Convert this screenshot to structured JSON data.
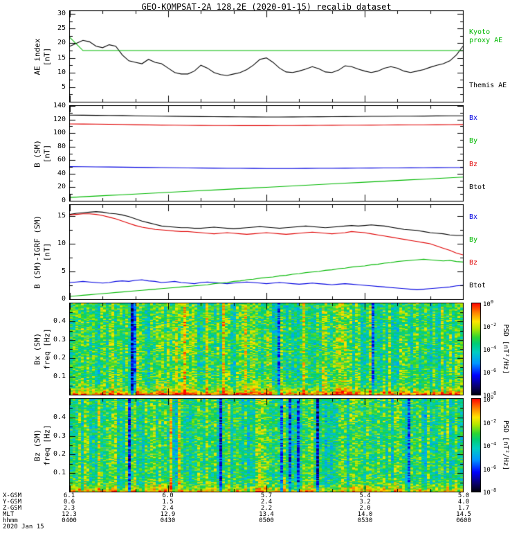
{
  "title": "GEO-KOMPSAT-2A 128.2E (2020-01-15) recalib dataset",
  "date_label": "2020 Jan 15",
  "colors": {
    "black": "#000000",
    "green": "#00b800",
    "red": "#e00000",
    "blue": "#0000e0",
    "background": "#ffffff"
  },
  "time_axis": {
    "tick_labels": [
      "0400",
      "0430",
      "0500",
      "0530",
      "0600"
    ],
    "range_minutes": [
      240,
      360
    ],
    "major_step_minutes": 30,
    "minor_step_minutes": 10
  },
  "bottom_rows": [
    {
      "label": "X-GSM",
      "values": [
        "6.1",
        "6.0",
        "5.7",
        "5.4",
        "5.0"
      ]
    },
    {
      "label": "Y-GSM",
      "values": [
        "0.6",
        "1.5",
        "2.4",
        "3.2",
        "4.0"
      ]
    },
    {
      "label": "Z-GSM",
      "values": [
        "2.3",
        "2.4",
        "2.2",
        "2.0",
        "1.7"
      ]
    },
    {
      "label": "MLT",
      "values": [
        "12.3",
        "12.9",
        "13.4",
        "14.0",
        "14.5"
      ]
    },
    {
      "label": "hhmm",
      "values": [
        "0400",
        "0430",
        "0500",
        "0530",
        "0600"
      ]
    }
  ],
  "chart_data": [
    {
      "type": "line",
      "panel": "ae-index",
      "ylabel_lines": [
        "AE index",
        "[nT]"
      ],
      "ylim": [
        0,
        31
      ],
      "yticks": [
        5,
        10,
        15,
        20,
        25,
        30
      ],
      "x_range_minutes": [
        240,
        360
      ],
      "series": [
        {
          "name": "Themis AE",
          "color": "#000000",
          "values": [
            19,
            20,
            21,
            20.5,
            19,
            18.5,
            19.5,
            19,
            16,
            14,
            13.5,
            13,
            14.5,
            13.5,
            13,
            11.5,
            10,
            9.5,
            9.5,
            10.5,
            12.5,
            11.5,
            10,
            9.3,
            9,
            9.5,
            10,
            11,
            12.5,
            14.5,
            15,
            13.5,
            11.5,
            10.2,
            10,
            10.5,
            11.2,
            12,
            11.3,
            10.2,
            10,
            10.8,
            12.3,
            12,
            11.2,
            10.5,
            10,
            10.5,
            11.5,
            12,
            11.5,
            10.5,
            10,
            10.5,
            11,
            11.8,
            12.5,
            13,
            14,
            16,
            19
          ]
        },
        {
          "name": "Kyoto proxy AE",
          "color": "#00b800",
          "values": [
            22,
            17.5,
            17.5,
            17.5,
            17.5,
            17.5,
            17.5,
            17.5,
            17.5,
            17.5,
            17.5,
            17.5,
            17.5,
            17.5,
            17.5,
            17.5,
            17.5,
            17.5,
            17.5,
            17.5,
            17.5,
            17.5,
            17.5,
            17.5,
            17.5,
            17.5,
            17.5,
            17.5,
            17.5,
            17.5,
            17.5
          ]
        }
      ],
      "legend": [
        {
          "lines": [
            "Kyoto",
            "proxy AE"
          ],
          "color": "#00b800",
          "y_frac": 0.2
        },
        {
          "lines": [
            "Themis AE"
          ],
          "color": "#000000",
          "y_frac": 0.78
        }
      ]
    },
    {
      "type": "line",
      "panel": "b-sm",
      "ylabel_lines": [
        "B (SM)",
        "[nT]"
      ],
      "ylim": [
        0,
        140
      ],
      "yticks": [
        0,
        20,
        40,
        60,
        80,
        100,
        120,
        140
      ],
      "x_range_minutes": [
        240,
        360
      ],
      "series": [
        {
          "name": "Btot",
          "color": "#000000",
          "values": [
            126.5,
            126.3,
            126.1,
            126,
            125.8,
            125.5,
            125.2,
            125,
            124.8,
            124.5,
            124.3,
            124.2,
            124,
            123.9,
            123.8,
            123.7,
            123.7,
            123.8,
            123.9,
            124,
            124.1,
            124.3,
            124.4,
            124.6,
            124.7,
            124.9,
            125,
            125.1,
            125.3,
            125.4,
            125.5
          ]
        },
        {
          "name": "Bz",
          "color": "#e00000",
          "values": [
            113.5,
            113.3,
            113.1,
            112.9,
            112.6,
            112.3,
            112,
            111.8,
            111.6,
            111.4,
            111.3,
            111.2,
            111.1,
            111,
            111,
            111,
            111.1,
            111.2,
            111.3,
            111.4,
            111.5,
            111.6,
            111.7,
            111.8,
            111.9,
            112,
            112.1,
            112.2,
            112.3,
            112.4,
            112.5
          ]
        },
        {
          "name": "Bx",
          "color": "#0000e0",
          "values": [
            50.5,
            50.3,
            50.1,
            49.9,
            49.7,
            49.4,
            49.2,
            49,
            48.8,
            48.6,
            48.4,
            48.2,
            48.1,
            48,
            47.9,
            47.8,
            47.8,
            47.8,
            47.9,
            48,
            48.1,
            48.2,
            48.3,
            48.4,
            48.5,
            48.6,
            48.7,
            48.8,
            48.9,
            49,
            49.1
          ]
        },
        {
          "name": "By",
          "color": "#00b800",
          "values": [
            5,
            6,
            7,
            8,
            9,
            10,
            11,
            12,
            13,
            14,
            15,
            16,
            17,
            18,
            19,
            20,
            21,
            22,
            23,
            24,
            25,
            26,
            27,
            28,
            29,
            30,
            31,
            32,
            33,
            34,
            35
          ]
        }
      ],
      "legend": [
        {
          "lines": [
            "Bx"
          ],
          "color": "#0000e0",
          "y_frac": 0.1
        },
        {
          "lines": [
            "By"
          ],
          "color": "#00b800",
          "y_frac": 0.34
        },
        {
          "lines": [
            "Bz"
          ],
          "color": "#e00000",
          "y_frac": 0.58
        },
        {
          "lines": [
            "Btot"
          ],
          "color": "#000000",
          "y_frac": 0.82
        }
      ]
    },
    {
      "type": "line",
      "panel": "b-sm-minus-igrf",
      "ylabel_lines": [
        "B (SM)-IGRF (SM)",
        "[nT]"
      ],
      "ylim": [
        0,
        17
      ],
      "yticks": [
        0,
        5,
        10,
        15
      ],
      "x_range_minutes": [
        240,
        360
      ],
      "series": [
        {
          "name": "Btot",
          "color": "#000000",
          "values": [
            15.3,
            15.5,
            15.6,
            15.7,
            15.8,
            15.7,
            15.5,
            15.4,
            15.2,
            14.9,
            14.5,
            14.1,
            13.8,
            13.5,
            13.2,
            13.1,
            13,
            12.9,
            12.9,
            12.8,
            12.8,
            12.9,
            13,
            12.9,
            12.8,
            12.7,
            12.8,
            12.9,
            13,
            13.1,
            13,
            12.9,
            12.8,
            12.9,
            13,
            13.1,
            13.2,
            13.1,
            13,
            12.9,
            13,
            13.1,
            13.2,
            13.3,
            13.2,
            13.3,
            13.4,
            13.3,
            13.2,
            13,
            12.8,
            12.6,
            12.5,
            12.4,
            12.2,
            12,
            11.9,
            11.8,
            11.6,
            11.5,
            11.5
          ]
        },
        {
          "name": "Bz",
          "color": "#e00000",
          "values": [
            15.2,
            15.3,
            15.4,
            15.4,
            15.3,
            15.1,
            14.8,
            14.5,
            14.1,
            13.7,
            13.3,
            13,
            12.8,
            12.6,
            12.5,
            12.4,
            12.3,
            12.2,
            12.2,
            12.1,
            12,
            11.9,
            11.8,
            11.9,
            12,
            11.9,
            11.8,
            11.7,
            11.8,
            11.9,
            12,
            11.9,
            11.8,
            11.7,
            11.8,
            11.9,
            12,
            12.1,
            12,
            11.9,
            11.8,
            11.9,
            12,
            12.2,
            12.1,
            12,
            11.8,
            11.6,
            11.4,
            11.2,
            11,
            10.8,
            10.6,
            10.4,
            10.2,
            10,
            9.6,
            9.2,
            8.8,
            8.3,
            8
          ]
        },
        {
          "name": "Bx",
          "color": "#0000e0",
          "values": [
            3,
            3.1,
            3.2,
            3.1,
            3,
            2.9,
            3,
            3.2,
            3.3,
            3.2,
            3.4,
            3.5,
            3.3,
            3.2,
            3,
            3.1,
            3.2,
            3,
            2.9,
            2.8,
            3,
            3.1,
            3,
            2.9,
            2.8,
            2.9,
            3,
            3.1,
            3,
            2.9,
            2.8,
            2.9,
            3,
            2.9,
            2.8,
            2.7,
            2.8,
            2.9,
            2.8,
            2.7,
            2.6,
            2.7,
            2.8,
            2.7,
            2.6,
            2.5,
            2.4,
            2.3,
            2.2,
            2.1,
            2,
            1.9,
            1.8,
            1.7,
            1.8,
            1.9,
            2,
            2.1,
            2.2,
            2.4,
            2.5
          ]
        },
        {
          "name": "By",
          "color": "#00b800",
          "values": [
            0.5,
            0.6,
            0.7,
            0.8,
            0.9,
            1,
            1.1,
            1.2,
            1.3,
            1.4,
            1.5,
            1.6,
            1.7,
            1.8,
            1.9,
            2,
            2.1,
            2.2,
            2.3,
            2.4,
            2.5,
            2.6,
            2.8,
            2.9,
            3,
            3.2,
            3.3,
            3.5,
            3.6,
            3.8,
            3.9,
            4,
            4.2,
            4.3,
            4.5,
            4.6,
            4.8,
            4.9,
            5,
            5.2,
            5.3,
            5.5,
            5.6,
            5.8,
            5.9,
            6,
            6.2,
            6.3,
            6.5,
            6.6,
            6.8,
            6.9,
            7,
            7.1,
            7.2,
            7.1,
            7,
            6.9,
            7,
            6.8,
            6.7
          ]
        }
      ],
      "legend": [
        {
          "lines": [
            "Bx"
          ],
          "color": "#0000e0",
          "y_frac": 0.1
        },
        {
          "lines": [
            "By"
          ],
          "color": "#00b800",
          "y_frac": 0.34
        },
        {
          "lines": [
            "Bz"
          ],
          "color": "#e00000",
          "y_frac": 0.58
        },
        {
          "lines": [
            "Btot"
          ],
          "color": "#000000",
          "y_frac": 0.82
        }
      ]
    },
    {
      "type": "heatmap",
      "panel": "bx-spectrogram",
      "ylabel_lines": [
        "Bx (SM)",
        "freq [Hz]"
      ],
      "ylim": [
        0,
        0.5
      ],
      "yticks": [
        0.1,
        0.2,
        0.3,
        0.4
      ],
      "x_range_minutes": [
        240,
        360
      ],
      "colorbar": {
        "label": "PSD [nT²/Hz]",
        "tick_exponents": [
          0,
          -2,
          -4,
          -6,
          -8
        ],
        "range_log10": [
          -8,
          0
        ]
      },
      "texture": {
        "seed": 20200115,
        "cols": 142,
        "rows": 88,
        "base_log10": -3.2,
        "cell_noise": 1.3,
        "col_noise": 0.8,
        "dark_col_prob": 0.07,
        "bright_col_prob": 0.06,
        "low_freq_boost": 2.9
      }
    },
    {
      "type": "heatmap",
      "panel": "bz-spectrogram",
      "ylabel_lines": [
        "Bz (SM)",
        "freq [Hz]"
      ],
      "ylim": [
        0,
        0.5
      ],
      "yticks": [
        0.1,
        0.2,
        0.3,
        0.4
      ],
      "x_range_minutes": [
        240,
        360
      ],
      "colorbar": {
        "label": "PSD [nT²/Hz]",
        "tick_exponents": [
          0,
          -2,
          -4,
          -6,
          -8
        ],
        "range_log10": [
          -8,
          0
        ]
      },
      "texture": {
        "seed": 1282,
        "cols": 142,
        "rows": 88,
        "base_log10": -3.4,
        "cell_noise": 1.3,
        "col_noise": 0.8,
        "dark_col_prob": 0.06,
        "bright_col_prob": 0.05,
        "low_freq_boost": 2.2
      }
    }
  ]
}
